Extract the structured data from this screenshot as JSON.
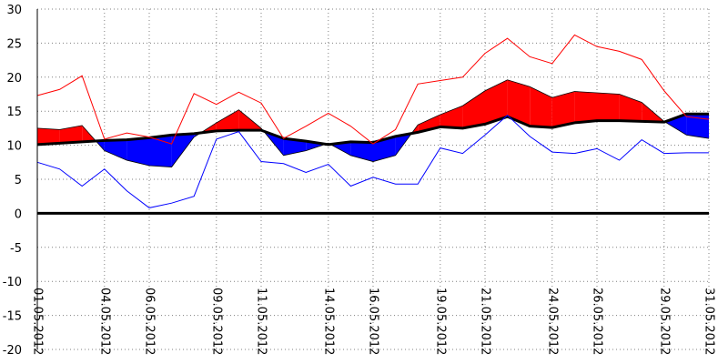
{
  "chart_data": {
    "type": "line",
    "title": "",
    "xlabel": "",
    "ylabel": "",
    "ylim": [
      -20,
      30
    ],
    "yticks": [
      30,
      25,
      20,
      15,
      10,
      5,
      0,
      -5,
      -10,
      -15,
      -20
    ],
    "xlim": [
      "01.05.2012",
      "31.05.2012"
    ],
    "xticks": [
      "01.05.2012",
      "04.05.2012",
      "06.05.2012",
      "09.05.2012",
      "11.05.2012",
      "14.05.2012",
      "16.05.2012",
      "19.05.2012",
      "21.05.2012",
      "24.05.2012",
      "26.05.2012",
      "29.05.2012",
      "31.05.2012"
    ],
    "grid": true,
    "legend": "none",
    "x": [
      "01.05.2012",
      "02.05.2012",
      "03.05.2012",
      "04.05.2012",
      "05.05.2012",
      "06.05.2012",
      "07.05.2012",
      "08.05.2012",
      "09.05.2012",
      "10.05.2012",
      "11.05.2012",
      "12.05.2012",
      "13.05.2012",
      "14.05.2012",
      "15.05.2012",
      "16.05.2012",
      "17.05.2012",
      "18.05.2012",
      "19.05.2012",
      "20.05.2012",
      "21.05.2012",
      "22.05.2012",
      "23.05.2012",
      "24.05.2012",
      "25.05.2012",
      "26.05.2012",
      "27.05.2012",
      "28.05.2012",
      "29.05.2012",
      "30.05.2012",
      "31.05.2012"
    ],
    "series": [
      {
        "role": "max",
        "color": "#ff0000",
        "values": [
          17.3,
          18.2,
          20.2,
          10.9,
          11.8,
          11.2,
          10.2,
          17.6,
          16.0,
          17.8,
          16.2,
          11.0,
          12.8,
          14.7,
          12.8,
          10.2,
          12.3,
          19.0,
          19.5,
          20.0,
          23.5,
          25.7,
          23.0,
          22.0,
          26.2,
          24.5,
          23.8,
          22.6,
          18.0,
          14.2,
          13.8
        ]
      },
      {
        "role": "min",
        "color": "#0000ff",
        "values": [
          7.5,
          6.5,
          4.0,
          6.5,
          3.3,
          0.8,
          1.5,
          2.5,
          10.9,
          12.0,
          7.6,
          7.3,
          6.0,
          7.2,
          4.0,
          5.3,
          4.3,
          4.3,
          9.6,
          8.8,
          11.5,
          14.4,
          11.3,
          9.0,
          8.8,
          9.5,
          7.8,
          10.8,
          8.8,
          8.9,
          8.9
        ]
      },
      {
        "role": "mean",
        "color": "#ff0000",
        "values": [
          12.5,
          12.3,
          12.9,
          9.2,
          7.8,
          7.0,
          6.8,
          11.2,
          13.3,
          15.2,
          12.5,
          8.5,
          9.2,
          10.3,
          8.5,
          7.6,
          8.5,
          13.0,
          14.5,
          15.8,
          18.0,
          19.6,
          18.6,
          17.0,
          17.9,
          17.7,
          17.5,
          16.3,
          13.5,
          11.5,
          11.0
        ]
      },
      {
        "role": "normal",
        "color": "#000000",
        "values": [
          10.1,
          10.3,
          10.5,
          10.7,
          10.8,
          11.1,
          11.5,
          11.7,
          12.1,
          12.2,
          12.2,
          11.0,
          10.6,
          10.1,
          10.5,
          10.4,
          11.3,
          11.9,
          12.7,
          12.5,
          13.1,
          14.2,
          12.8,
          12.6,
          13.3,
          13.6,
          13.6,
          13.5,
          13.4,
          14.6,
          14.6
        ]
      }
    ]
  }
}
